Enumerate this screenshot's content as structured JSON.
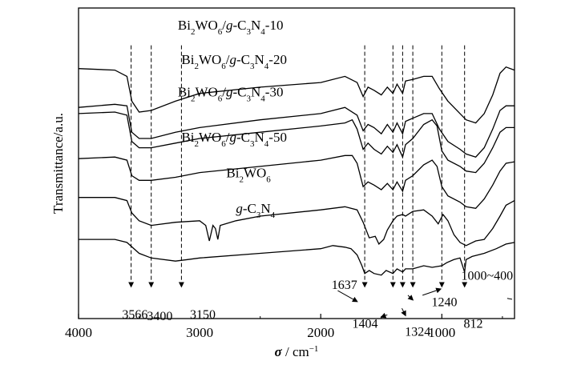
{
  "chart_data": {
    "type": "line",
    "title": "",
    "xlabel": {
      "symbol": "σ",
      "unit": " / cm",
      "exp": "−1"
    },
    "ylabel": "Transmittance/a.u.",
    "xlim": [
      4000,
      400
    ],
    "x_ticks": [
      4000,
      3000,
      2000,
      1000
    ],
    "x_tick_labels": [
      "4000",
      "3000",
      "2000",
      "1000"
    ],
    "y_ticks_shown": false,
    "grid": false,
    "legend": "none",
    "series": [
      {
        "name": "Bi2WO6/g-C3N4-10",
        "label_parts": [
          [
            "Bi",
            ""
          ],
          [
            "2",
            "sub"
          ],
          [
            "WO",
            ""
          ],
          [
            "6",
            "sub"
          ],
          [
            "/",
            ""
          ],
          [
            "g",
            "it"
          ],
          [
            "-C",
            ""
          ],
          [
            "3",
            "sub"
          ],
          [
            "N",
            ""
          ],
          [
            "4",
            "sub"
          ],
          [
            "-10",
            ""
          ]
        ],
        "label_at": [
          3180,
          0.93
        ],
        "points": [
          [
            4000,
            0.805
          ],
          [
            3700,
            0.8
          ],
          [
            3600,
            0.78
          ],
          [
            3560,
            0.7
          ],
          [
            3500,
            0.665
          ],
          [
            3400,
            0.67
          ],
          [
            3200,
            0.7
          ],
          [
            3000,
            0.725
          ],
          [
            2500,
            0.745
          ],
          [
            2000,
            0.76
          ],
          [
            1800,
            0.78
          ],
          [
            1700,
            0.76
          ],
          [
            1650,
            0.715
          ],
          [
            1610,
            0.745
          ],
          [
            1560,
            0.735
          ],
          [
            1500,
            0.72
          ],
          [
            1450,
            0.745
          ],
          [
            1404,
            0.725
          ],
          [
            1370,
            0.755
          ],
          [
            1324,
            0.725
          ],
          [
            1300,
            0.765
          ],
          [
            1240,
            0.77
          ],
          [
            1150,
            0.78
          ],
          [
            1080,
            0.78
          ],
          [
            1020,
            0.74
          ],
          [
            950,
            0.7
          ],
          [
            850,
            0.66
          ],
          [
            800,
            0.64
          ],
          [
            720,
            0.63
          ],
          [
            650,
            0.66
          ],
          [
            580,
            0.72
          ],
          [
            520,
            0.79
          ],
          [
            470,
            0.81
          ],
          [
            400,
            0.8
          ]
        ]
      },
      {
        "name": "Bi2WO6/g-C3N4-20",
        "label_parts": [
          [
            "Bi",
            ""
          ],
          [
            "2",
            "sub"
          ],
          [
            "WO",
            ""
          ],
          [
            "6",
            "sub"
          ],
          [
            "/",
            ""
          ],
          [
            "g",
            "it"
          ],
          [
            "-C",
            ""
          ],
          [
            "3",
            "sub"
          ],
          [
            "N",
            ""
          ],
          [
            "4",
            "sub"
          ],
          [
            "-20",
            ""
          ]
        ],
        "label_at": [
          3150,
          0.82
        ],
        "points": [
          [
            4000,
            0.68
          ],
          [
            3700,
            0.69
          ],
          [
            3600,
            0.685
          ],
          [
            3560,
            0.6
          ],
          [
            3500,
            0.58
          ],
          [
            3400,
            0.58
          ],
          [
            3200,
            0.6
          ],
          [
            3000,
            0.615
          ],
          [
            2500,
            0.64
          ],
          [
            2000,
            0.66
          ],
          [
            1800,
            0.68
          ],
          [
            1700,
            0.655
          ],
          [
            1650,
            0.605
          ],
          [
            1610,
            0.625
          ],
          [
            1560,
            0.615
          ],
          [
            1500,
            0.595
          ],
          [
            1450,
            0.625
          ],
          [
            1404,
            0.6
          ],
          [
            1370,
            0.63
          ],
          [
            1324,
            0.595
          ],
          [
            1300,
            0.635
          ],
          [
            1240,
            0.645
          ],
          [
            1150,
            0.66
          ],
          [
            1080,
            0.66
          ],
          [
            1020,
            0.61
          ],
          [
            950,
            0.57
          ],
          [
            850,
            0.545
          ],
          [
            800,
            0.53
          ],
          [
            720,
            0.52
          ],
          [
            650,
            0.55
          ],
          [
            580,
            0.61
          ],
          [
            520,
            0.67
          ],
          [
            470,
            0.685
          ],
          [
            400,
            0.685
          ]
        ]
      },
      {
        "name": "Bi2WO6/g-C3N4-30",
        "label_parts": [
          [
            "Bi",
            ""
          ],
          [
            "2",
            "sub"
          ],
          [
            "WO",
            ""
          ],
          [
            "6",
            "sub"
          ],
          [
            "/",
            ""
          ],
          [
            "g",
            "it"
          ],
          [
            "-C",
            ""
          ],
          [
            "3",
            "sub"
          ],
          [
            "N",
            ""
          ],
          [
            "4",
            "sub"
          ],
          [
            "-30",
            ""
          ]
        ],
        "label_at": [
          3180,
          0.715
        ],
        "points": [
          [
            4000,
            0.66
          ],
          [
            3700,
            0.665
          ],
          [
            3600,
            0.655
          ],
          [
            3560,
            0.57
          ],
          [
            3500,
            0.55
          ],
          [
            3400,
            0.55
          ],
          [
            3200,
            0.565
          ],
          [
            3000,
            0.58
          ],
          [
            2500,
            0.6
          ],
          [
            2000,
            0.62
          ],
          [
            1800,
            0.63
          ],
          [
            1740,
            0.64
          ],
          [
            1700,
            0.61
          ],
          [
            1650,
            0.545
          ],
          [
            1610,
            0.565
          ],
          [
            1560,
            0.545
          ],
          [
            1500,
            0.53
          ],
          [
            1450,
            0.555
          ],
          [
            1404,
            0.535
          ],
          [
            1370,
            0.56
          ],
          [
            1324,
            0.52
          ],
          [
            1300,
            0.56
          ],
          [
            1240,
            0.58
          ],
          [
            1150,
            0.625
          ],
          [
            1080,
            0.64
          ],
          [
            1040,
            0.62
          ],
          [
            1000,
            0.54
          ],
          [
            950,
            0.51
          ],
          [
            850,
            0.49
          ],
          [
            800,
            0.475
          ],
          [
            720,
            0.47
          ],
          [
            650,
            0.5
          ],
          [
            580,
            0.55
          ],
          [
            520,
            0.6
          ],
          [
            470,
            0.615
          ],
          [
            400,
            0.615
          ]
        ]
      },
      {
        "name": "Bi2WO6/g-C3N4-50",
        "label_parts": [
          [
            "Bi",
            ""
          ],
          [
            "2",
            "sub"
          ],
          [
            "WO",
            ""
          ],
          [
            "6",
            "sub"
          ],
          [
            "/",
            ""
          ],
          [
            "g",
            "it"
          ],
          [
            "-C",
            ""
          ],
          [
            "3",
            "sub"
          ],
          [
            "N",
            ""
          ],
          [
            "4",
            "sub"
          ],
          [
            "-50",
            ""
          ]
        ],
        "label_at": [
          3150,
          0.57
        ],
        "points": [
          [
            4000,
            0.515
          ],
          [
            3700,
            0.52
          ],
          [
            3600,
            0.51
          ],
          [
            3560,
            0.46
          ],
          [
            3500,
            0.445
          ],
          [
            3400,
            0.445
          ],
          [
            3200,
            0.455
          ],
          [
            3000,
            0.47
          ],
          [
            2500,
            0.49
          ],
          [
            2000,
            0.51
          ],
          [
            1800,
            0.525
          ],
          [
            1740,
            0.525
          ],
          [
            1700,
            0.5
          ],
          [
            1650,
            0.425
          ],
          [
            1610,
            0.44
          ],
          [
            1560,
            0.43
          ],
          [
            1500,
            0.415
          ],
          [
            1450,
            0.435
          ],
          [
            1404,
            0.415
          ],
          [
            1370,
            0.44
          ],
          [
            1324,
            0.41
          ],
          [
            1300,
            0.445
          ],
          [
            1240,
            0.46
          ],
          [
            1150,
            0.495
          ],
          [
            1080,
            0.51
          ],
          [
            1040,
            0.49
          ],
          [
            1000,
            0.425
          ],
          [
            950,
            0.395
          ],
          [
            850,
            0.375
          ],
          [
            800,
            0.36
          ],
          [
            720,
            0.355
          ],
          [
            650,
            0.385
          ],
          [
            580,
            0.43
          ],
          [
            520,
            0.475
          ],
          [
            470,
            0.5
          ],
          [
            400,
            0.505
          ]
        ]
      },
      {
        "name": "Bi2WO6",
        "label_parts": [
          [
            "Bi",
            ""
          ],
          [
            "2",
            "sub"
          ],
          [
            "WO",
            ""
          ],
          [
            "6",
            "sub"
          ]
        ],
        "label_at": [
          2780,
          0.455
        ],
        "points": [
          [
            4000,
            0.39
          ],
          [
            3700,
            0.39
          ],
          [
            3600,
            0.38
          ],
          [
            3560,
            0.34
          ],
          [
            3500,
            0.315
          ],
          [
            3400,
            0.3
          ],
          [
            3200,
            0.31
          ],
          [
            3000,
            0.315
          ],
          [
            2950,
            0.3
          ],
          [
            2920,
            0.25
          ],
          [
            2890,
            0.3
          ],
          [
            2870,
            0.29
          ],
          [
            2850,
            0.255
          ],
          [
            2830,
            0.3
          ],
          [
            2700,
            0.315
          ],
          [
            2500,
            0.33
          ],
          [
            2000,
            0.35
          ],
          [
            1800,
            0.36
          ],
          [
            1700,
            0.35
          ],
          [
            1650,
            0.31
          ],
          [
            1600,
            0.26
          ],
          [
            1550,
            0.265
          ],
          [
            1520,
            0.24
          ],
          [
            1480,
            0.255
          ],
          [
            1450,
            0.285
          ],
          [
            1404,
            0.315
          ],
          [
            1370,
            0.33
          ],
          [
            1324,
            0.335
          ],
          [
            1300,
            0.33
          ],
          [
            1240,
            0.345
          ],
          [
            1150,
            0.35
          ],
          [
            1080,
            0.33
          ],
          [
            1030,
            0.305
          ],
          [
            990,
            0.335
          ],
          [
            950,
            0.315
          ],
          [
            900,
            0.27
          ],
          [
            850,
            0.245
          ],
          [
            800,
            0.235
          ],
          [
            720,
            0.25
          ],
          [
            650,
            0.255
          ],
          [
            580,
            0.29
          ],
          [
            520,
            0.33
          ],
          [
            470,
            0.365
          ],
          [
            400,
            0.38
          ]
        ]
      },
      {
        "name": "g-C3N4",
        "label_parts": [
          [
            "g",
            "it"
          ],
          [
            "-C",
            ""
          ],
          [
            "3",
            "sub"
          ],
          [
            "N",
            ""
          ],
          [
            "4",
            "sub"
          ]
        ],
        "label_at": [
          2700,
          0.34
        ],
        "points": [
          [
            4000,
            0.255
          ],
          [
            3700,
            0.255
          ],
          [
            3600,
            0.245
          ],
          [
            3500,
            0.21
          ],
          [
            3400,
            0.195
          ],
          [
            3200,
            0.185
          ],
          [
            3100,
            0.19
          ],
          [
            3000,
            0.195
          ],
          [
            2500,
            0.21
          ],
          [
            2000,
            0.225
          ],
          [
            1900,
            0.235
          ],
          [
            1800,
            0.23
          ],
          [
            1750,
            0.225
          ],
          [
            1700,
            0.205
          ],
          [
            1660,
            0.17
          ],
          [
            1637,
            0.145
          ],
          [
            1600,
            0.155
          ],
          [
            1560,
            0.145
          ],
          [
            1500,
            0.14
          ],
          [
            1460,
            0.155
          ],
          [
            1404,
            0.145
          ],
          [
            1370,
            0.16
          ],
          [
            1324,
            0.15
          ],
          [
            1300,
            0.16
          ],
          [
            1240,
            0.16
          ],
          [
            1150,
            0.17
          ],
          [
            1080,
            0.165
          ],
          [
            1000,
            0.17
          ],
          [
            960,
            0.18
          ],
          [
            900,
            0.19
          ],
          [
            850,
            0.195
          ],
          [
            812,
            0.15
          ],
          [
            800,
            0.19
          ],
          [
            750,
            0.2
          ],
          [
            650,
            0.21
          ],
          [
            550,
            0.225
          ],
          [
            470,
            0.24
          ],
          [
            400,
            0.245
          ]
        ]
      }
    ],
    "markers": [
      {
        "x": 3566,
        "label": "3566",
        "y_top": 0.88,
        "label_at": [
          3640,
          0.0
        ]
      },
      {
        "x": 3400,
        "label": "3400",
        "y_top": 0.88,
        "label_at": [
          3435,
          -0.005
        ]
      },
      {
        "x": 3150,
        "label": "3150",
        "y_top": 0.88,
        "label_at": [
          3080,
          0.0
        ]
      },
      {
        "x": 1637,
        "label": "1637",
        "y_top": 0.88,
        "label_at": [
          1910,
          0.095
        ]
      },
      {
        "x": 1404,
        "label": "1404",
        "y_top": 0.88,
        "label_at": [
          1740,
          -0.03
        ]
      },
      {
        "x": 1324,
        "label": "1324",
        "y_top": 0.88,
        "label_at": [
          1305,
          -0.055
        ]
      },
      {
        "x": 1240,
        "label": "1240",
        "y_top": 0.88,
        "label_at": [
          1085,
          0.04
        ]
      },
      {
        "x": 1000,
        "label": "1000~400",
        "y_top": 0.88,
        "label_at": [
          840,
          0.125
        ]
      },
      {
        "x": 812,
        "label": "812",
        "y_top": 0.88,
        "label_at": [
          820,
          -0.03
        ]
      }
    ]
  }
}
